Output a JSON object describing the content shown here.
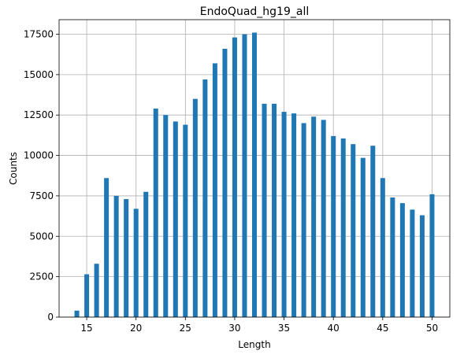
{
  "chart_data": {
    "type": "bar",
    "title": "EndoQuad_hg19_all",
    "xlabel": "Length",
    "ylabel": "Counts",
    "xlim": [
      12.2,
      51.8
    ],
    "ylim": [
      0,
      18400
    ],
    "x_ticks": [
      15,
      20,
      25,
      30,
      35,
      40,
      45,
      50
    ],
    "y_ticks": [
      0,
      2500,
      5000,
      7500,
      10000,
      12500,
      15000,
      17500
    ],
    "x_tick_labels": [
      "15",
      "20",
      "25",
      "30",
      "35",
      "40",
      "45",
      "50"
    ],
    "y_tick_labels": [
      "0",
      "2500",
      "5000",
      "7500",
      "10000",
      "12500",
      "15000",
      "17500"
    ],
    "grid": true,
    "bar_color": "#1f77b4",
    "series": [
      {
        "x": [
          14,
          15,
          16,
          17,
          18,
          19,
          20,
          21,
          22,
          23,
          24,
          25,
          26,
          27,
          28,
          29,
          30,
          31,
          32,
          33,
          34,
          35,
          36,
          37,
          38,
          39,
          40,
          41,
          42,
          43,
          44,
          45,
          46,
          47,
          48,
          49,
          50
        ],
        "values": [
          400,
          2650,
          3300,
          8600,
          7500,
          7300,
          6700,
          7750,
          12900,
          12500,
          12100,
          11900,
          13500,
          14700,
          15700,
          16600,
          17300,
          17500,
          17600,
          13200,
          13200,
          12700,
          12600,
          12000,
          12400,
          12200,
          11200,
          11050,
          10700,
          9850,
          10600,
          8600,
          7400,
          7050,
          6650,
          6300,
          7600
        ]
      }
    ]
  }
}
